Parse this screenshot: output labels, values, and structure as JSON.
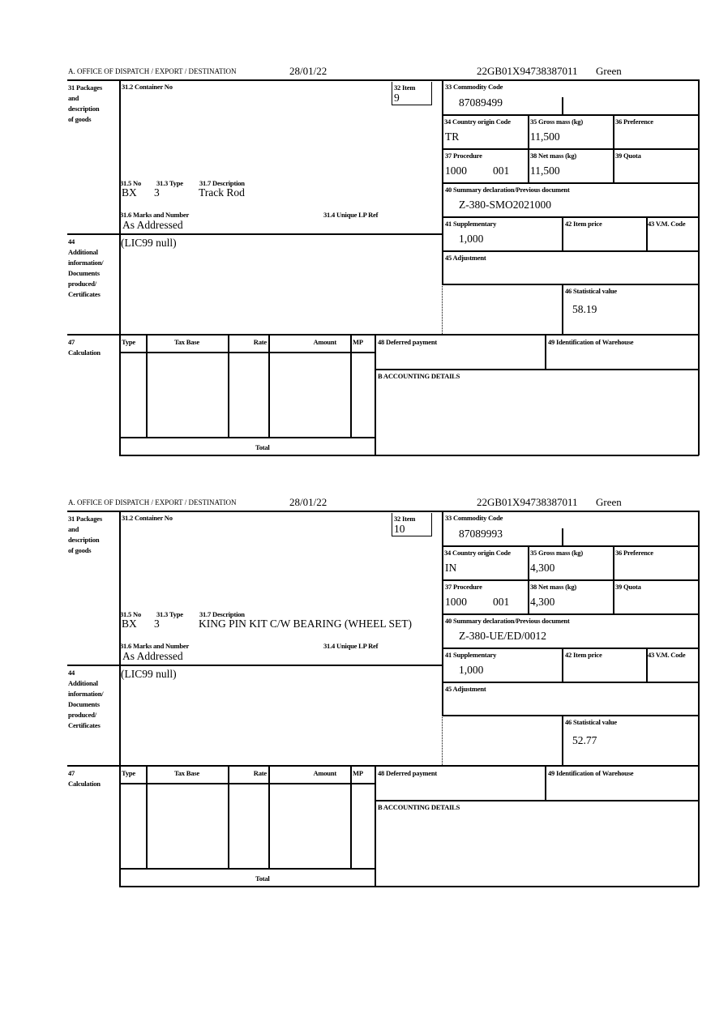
{
  "labels": {
    "office": "A. OFFICE OF DISPATCH / EXPORT / DESTINATION",
    "packages": [
      "31 Packages",
      "and",
      "description",
      "of goods"
    ],
    "container_no": "31.2 Container No",
    "item": "32 Item",
    "no": "31.5 No",
    "type": "31.3 Type",
    "description": "31.7 Description",
    "marks": "31.6 Marks and Number",
    "unique_lp": "31.4 Unique LP Ref",
    "additional": [
      "44",
      "Additional",
      "information/",
      "Documents",
      "produced/",
      "Certificates"
    ],
    "commodity_code": "33 Commodity Code",
    "country_origin": "34 Country origin Code",
    "gross_mass": "35 Gross mass (kg)",
    "preference": "36 Preference",
    "procedure": "37 Procedure",
    "net_mass": "38 Net mass (kg)",
    "quota": "39 Quota",
    "summary_decl": "40 Summary declaration/Previous document",
    "supplementary": "41 Supplementary",
    "item_price": "42 Item price",
    "vm_code": "43 V.M. Code",
    "adjustment": "45 Adjustment",
    "statistical_value": "46 Statistical value",
    "calculation": [
      "47",
      "Calculation"
    ],
    "calc_cols": [
      "Type",
      "Tax Base",
      "Rate",
      "Amount",
      "MP"
    ],
    "total": "Total",
    "deferred_payment": "48 Deferred payment",
    "warehouse": "49 Identification of Warehouse",
    "accounting": "B ACCOUNTING DETAILS"
  },
  "items": [
    {
      "date": "28/01/22",
      "reference": "22GB01X94738387011",
      "route": "Green",
      "item_no": "9",
      "pkg_no": "BX",
      "pkg_type": "3",
      "description": "Track Rod",
      "marks": "As Addressed",
      "additional_info": "(LIC99 null)",
      "commodity_code": "87089499",
      "country_origin": "TR",
      "gross_mass": "11,500",
      "procedure": "1000",
      "procedure_add": "001",
      "net_mass": "11,500",
      "summary_decl": "Z-380-SMO2021000",
      "supplementary": "1,000",
      "statistical_value": "58.19"
    },
    {
      "date": "28/01/22",
      "reference": "22GB01X94738387011",
      "route": "Green",
      "item_no": "10",
      "pkg_no": "BX",
      "pkg_type": "3",
      "description": "KING PIN KIT C/W BEARING (WHEEL SET)",
      "marks": "As Addressed",
      "additional_info": "(LIC99 null)",
      "commodity_code": "87089993",
      "country_origin": "IN",
      "gross_mass": "4,300",
      "procedure": "1000",
      "procedure_add": "001",
      "net_mass": "4,300",
      "summary_decl": "Z-380-UE/ED/0012",
      "supplementary": "1,000",
      "statistical_value": "52.77"
    }
  ]
}
